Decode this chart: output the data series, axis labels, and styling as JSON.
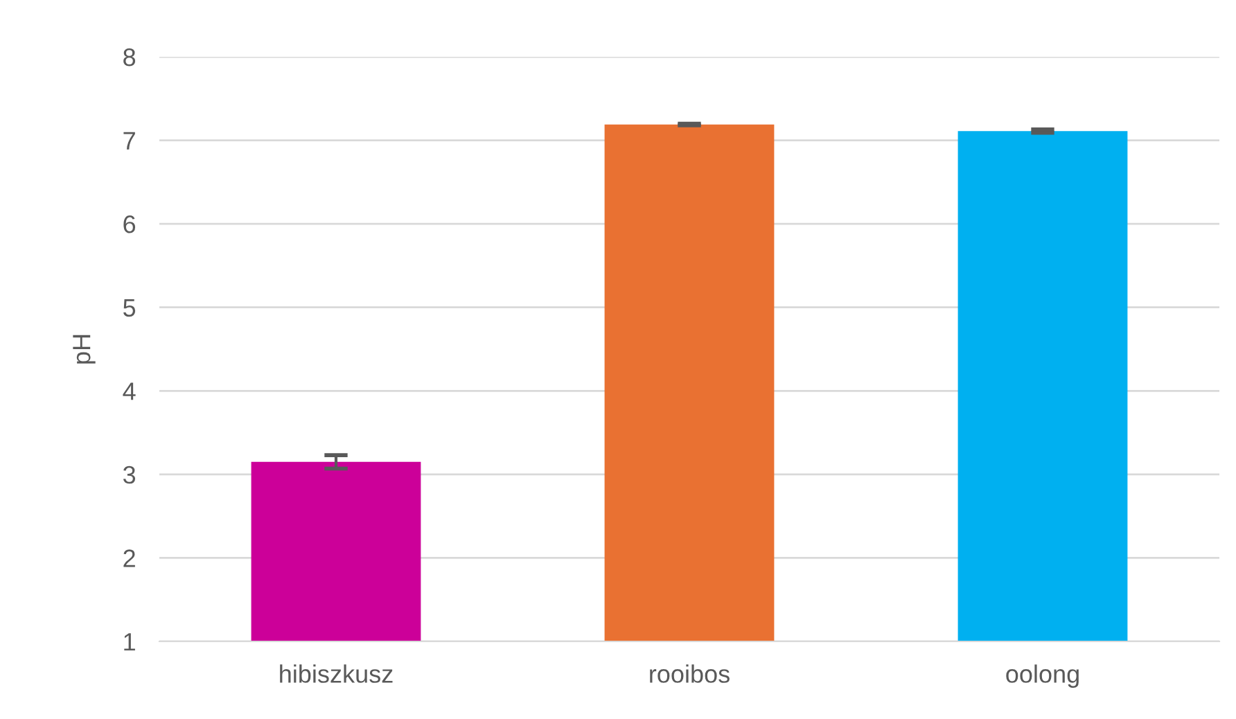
{
  "chart_data": {
    "type": "bar",
    "ylabel": "pH",
    "categories": [
      "hibiszkusz",
      "rooibos",
      "oolong"
    ],
    "values": [
      3.15,
      7.19,
      7.11
    ],
    "errors": [
      0.08,
      0.01,
      0.02
    ],
    "colors": [
      "#cc0099",
      "#e97132",
      "#00b0f0"
    ],
    "ylim": [
      1,
      8
    ],
    "yticks": [
      1,
      2,
      3,
      4,
      5,
      6,
      7,
      8
    ],
    "grid": "y",
    "legend": false
  }
}
